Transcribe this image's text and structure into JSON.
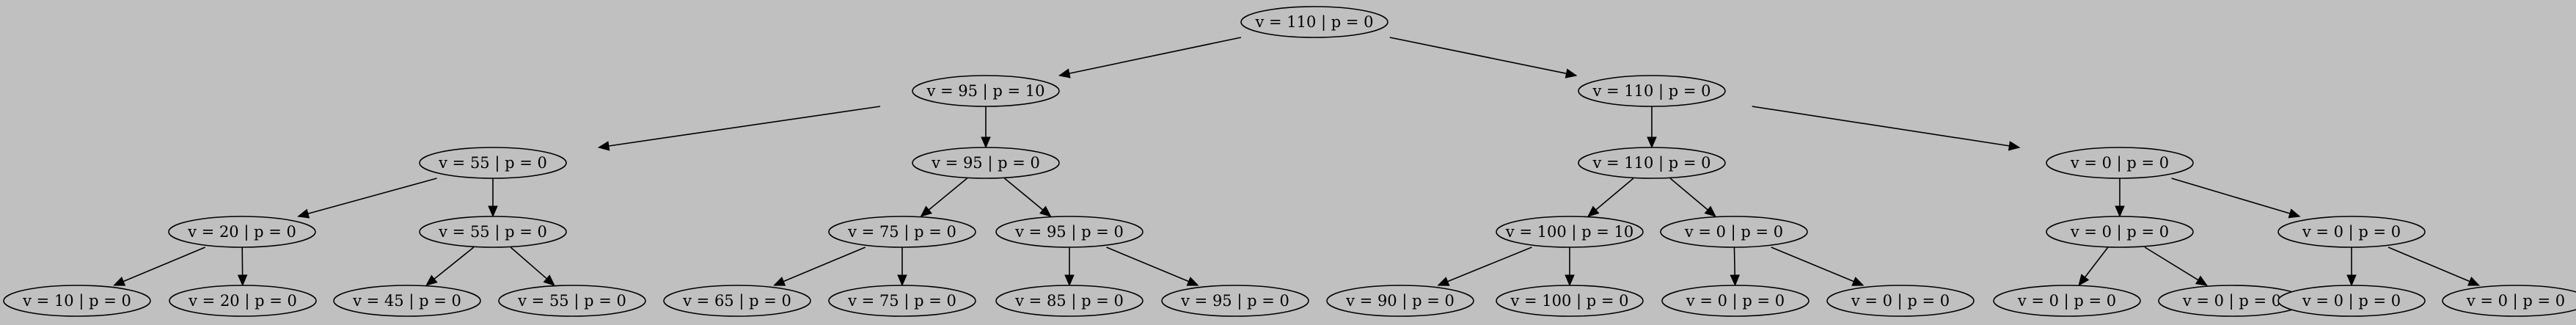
{
  "tree": {
    "nodes": [
      {
        "id": "n0",
        "label": "v = 110 | p = 0"
      },
      {
        "id": "n1",
        "label": "v = 95 | p = 10"
      },
      {
        "id": "n2",
        "label": "v = 110 | p = 0"
      },
      {
        "id": "n3",
        "label": "v = 55 | p = 0"
      },
      {
        "id": "n4",
        "label": "v = 95 | p = 0"
      },
      {
        "id": "n5",
        "label": "v = 110 | p = 0"
      },
      {
        "id": "n6",
        "label": "v = 0 | p = 0"
      },
      {
        "id": "n7",
        "label": "v = 20 | p = 0"
      },
      {
        "id": "n8",
        "label": "v = 55 | p = 0"
      },
      {
        "id": "n9",
        "label": "v = 75 | p = 0"
      },
      {
        "id": "n10",
        "label": "v = 95 | p = 0"
      },
      {
        "id": "n11",
        "label": "v = 100 | p = 10"
      },
      {
        "id": "n12",
        "label": "v = 0 | p = 0"
      },
      {
        "id": "n13",
        "label": "v = 0 | p = 0"
      },
      {
        "id": "n14",
        "label": "v = 0 | p = 0"
      },
      {
        "id": "n15",
        "label": "v = 10 | p = 0"
      },
      {
        "id": "n16",
        "label": "v = 20 | p = 0"
      },
      {
        "id": "n17",
        "label": "v = 45 | p = 0"
      },
      {
        "id": "n18",
        "label": "v = 55 | p = 0"
      },
      {
        "id": "n19",
        "label": "v = 65 | p = 0"
      },
      {
        "id": "n20",
        "label": "v = 75 | p = 0"
      },
      {
        "id": "n21",
        "label": "v = 85 | p = 0"
      },
      {
        "id": "n22",
        "label": "v = 95 | p = 0"
      },
      {
        "id": "n23",
        "label": "v = 90 | p = 0"
      },
      {
        "id": "n24",
        "label": "v = 100 | p = 0"
      },
      {
        "id": "n25",
        "label": "v = 0 | p = 0"
      },
      {
        "id": "n26",
        "label": "v = 0 | p = 0"
      },
      {
        "id": "n27",
        "label": "v = 0 | p = 0"
      },
      {
        "id": "n28",
        "label": "v = 0 | p = 0"
      },
      {
        "id": "n29",
        "label": "v = 0 | p = 0"
      },
      {
        "id": "n30",
        "label": "v = 0 | p = 0"
      }
    ],
    "edges": [
      [
        "n0",
        "n1"
      ],
      [
        "n0",
        "n2"
      ],
      [
        "n1",
        "n3"
      ],
      [
        "n1",
        "n4"
      ],
      [
        "n2",
        "n5"
      ],
      [
        "n2",
        "n6"
      ],
      [
        "n3",
        "n7"
      ],
      [
        "n3",
        "n8"
      ],
      [
        "n4",
        "n9"
      ],
      [
        "n4",
        "n10"
      ],
      [
        "n5",
        "n11"
      ],
      [
        "n5",
        "n12"
      ],
      [
        "n6",
        "n13"
      ],
      [
        "n6",
        "n14"
      ],
      [
        "n7",
        "n15"
      ],
      [
        "n7",
        "n16"
      ],
      [
        "n8",
        "n17"
      ],
      [
        "n8",
        "n18"
      ],
      [
        "n9",
        "n19"
      ],
      [
        "n9",
        "n20"
      ],
      [
        "n10",
        "n21"
      ],
      [
        "n10",
        "n22"
      ],
      [
        "n11",
        "n23"
      ],
      [
        "n11",
        "n24"
      ],
      [
        "n12",
        "n25"
      ],
      [
        "n12",
        "n26"
      ],
      [
        "n13",
        "n27"
      ],
      [
        "n13",
        "n28"
      ],
      [
        "n14",
        "n29"
      ],
      [
        "n14",
        "n30"
      ]
    ]
  },
  "colors": {
    "background": "#c0c0c0",
    "stroke": "#000000"
  }
}
